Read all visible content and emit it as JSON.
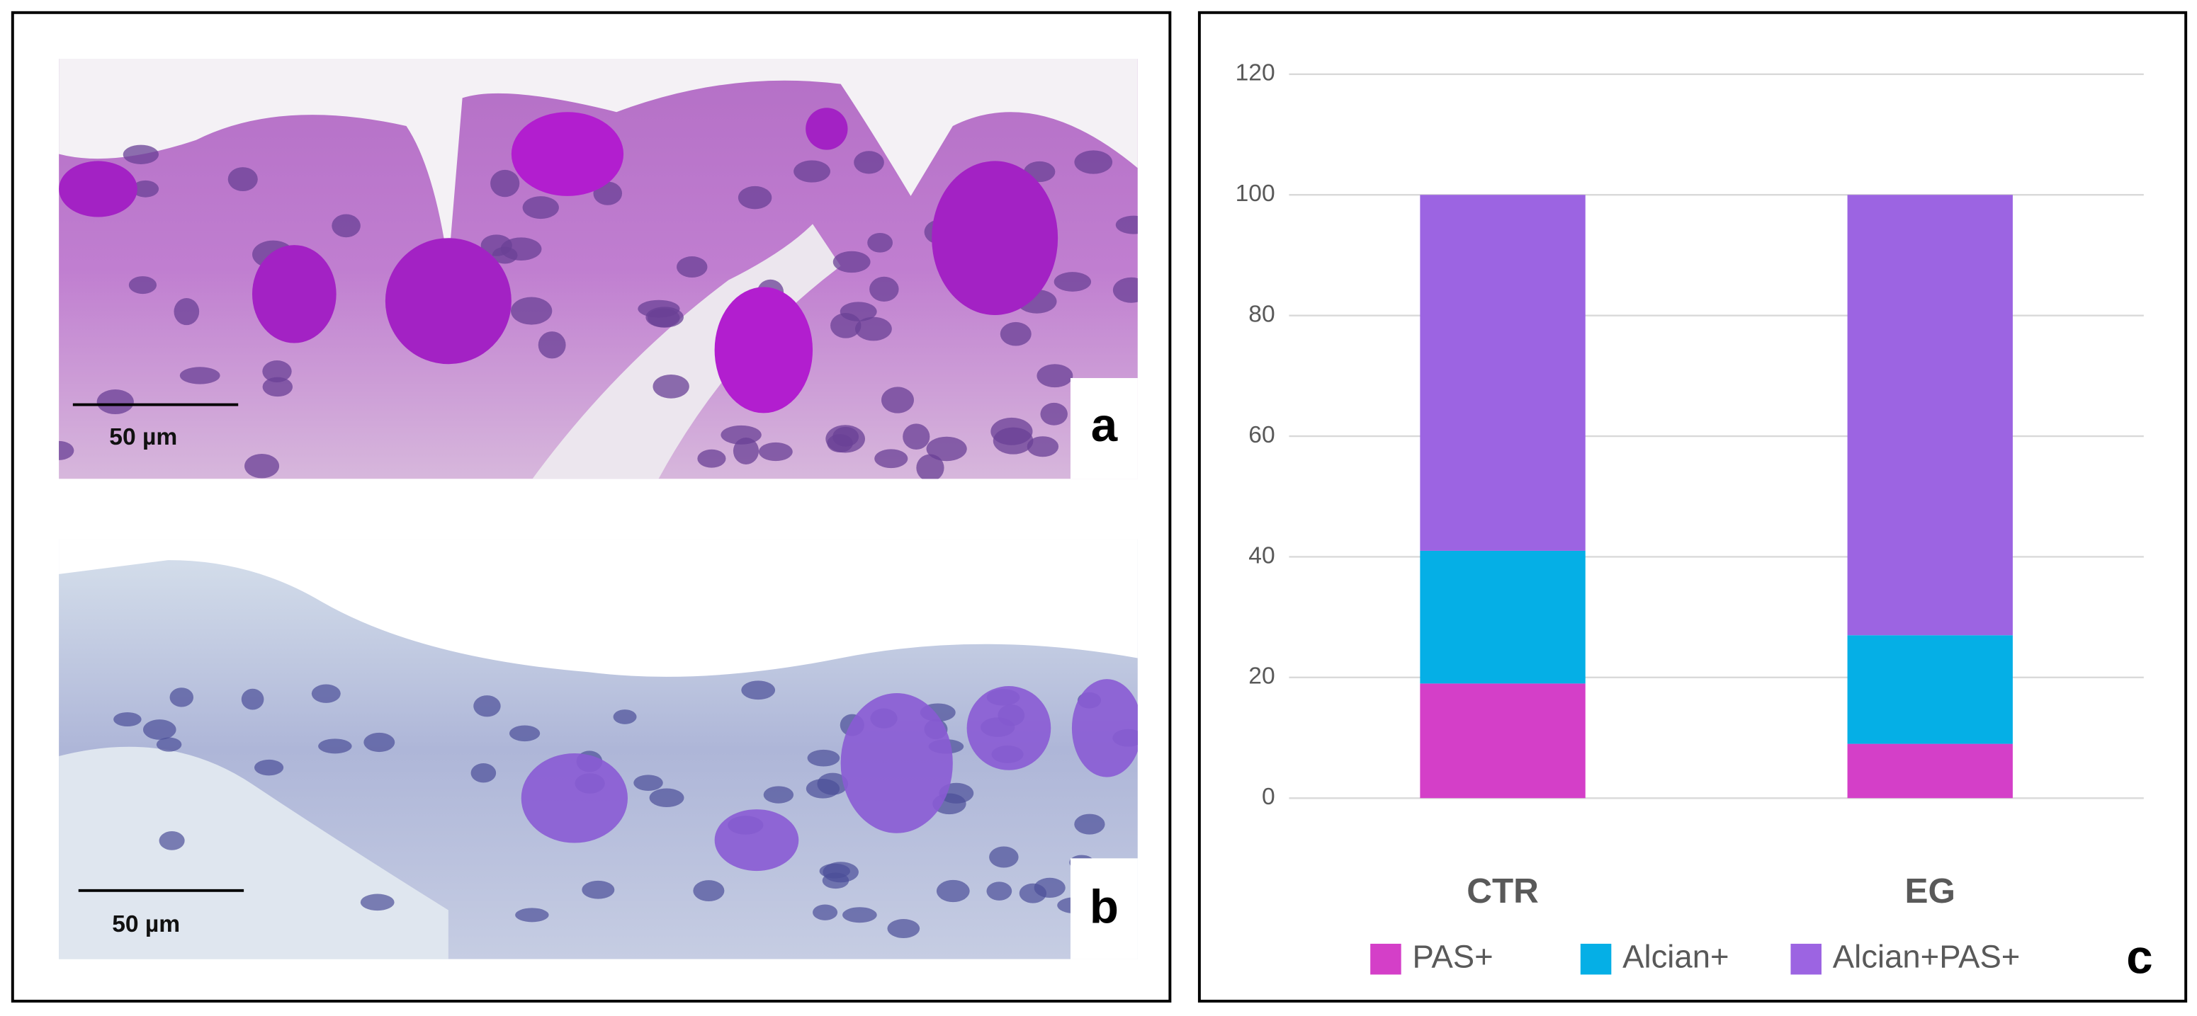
{
  "panels": {
    "a": {
      "label": "a",
      "scale_bar": "50 µm"
    },
    "b": {
      "label": "b",
      "scale_bar": "50 µm"
    },
    "c": {
      "label": "c"
    }
  },
  "chart_data": {
    "type": "stacked_bar",
    "categories": [
      "CTR",
      "EG"
    ],
    "series": [
      {
        "name": "PAS+",
        "color": "#d43fc8",
        "values": [
          19,
          9
        ]
      },
      {
        "name": "Alcian+",
        "color": "#05afe6",
        "values": [
          22,
          18
        ]
      },
      {
        "name": "Alcian+PAS+",
        "color": "#9c64e2",
        "values": [
          59,
          73
        ]
      }
    ],
    "ylim": [
      0,
      120
    ],
    "yticks": [
      0,
      20,
      40,
      60,
      80,
      100,
      120
    ],
    "grid": true,
    "legend": "bottom"
  }
}
